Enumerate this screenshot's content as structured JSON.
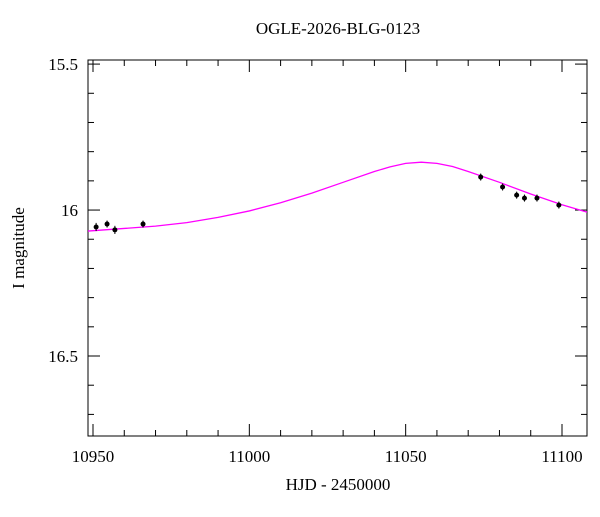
{
  "chart_data": {
    "type": "scatter",
    "title": "OGLE-2026-BLG-0123",
    "x_label": "HJD - 2450000",
    "y_label": "I magnitude",
    "xlim": [
      10948.4,
      11108
    ],
    "ylim": [
      16.774,
      15.486
    ],
    "xticks": [
      10950,
      11000,
      11050,
      11100
    ],
    "yticks": [
      15.5,
      16,
      16.5
    ],
    "x_minor_ticks": [
      10960,
      10970,
      10980,
      10990,
      11010,
      11020,
      11030,
      11040,
      11060,
      11070,
      11080,
      11090,
      11100
    ],
    "y_minor_ticks": [
      15.6,
      15.7,
      15.8,
      15.9,
      16.1,
      16.2,
      16.3,
      16.4,
      16.6,
      16.7
    ],
    "points": {
      "color": "#000000",
      "x": [
        10951,
        10954.5,
        10957,
        10966,
        11074,
        11081,
        11085.5,
        11088,
        11092,
        11099
      ],
      "y": [
        16.058,
        16.048,
        16.068,
        16.048,
        15.887,
        15.921,
        15.949,
        15.959,
        15.959,
        15.983
      ],
      "yerr": [
        0.014,
        0.012,
        0.014,
        0.012,
        0.012,
        0.012,
        0.012,
        0.012,
        0.012,
        0.012
      ]
    },
    "model": {
      "color": "#ff00ff",
      "x": [
        10948.4,
        10960,
        10970,
        10980,
        10990,
        11000,
        11010,
        11020,
        11030,
        11040,
        11045,
        11050,
        11055,
        11060,
        11065,
        11070,
        11080,
        11090,
        11100,
        11108
      ],
      "y": [
        16.072,
        16.063,
        16.055,
        16.043,
        16.025,
        16.003,
        15.975,
        15.942,
        15.905,
        15.868,
        15.852,
        15.84,
        15.836,
        15.84,
        15.851,
        15.868,
        15.905,
        15.945,
        15.982,
        16.007
      ]
    }
  }
}
